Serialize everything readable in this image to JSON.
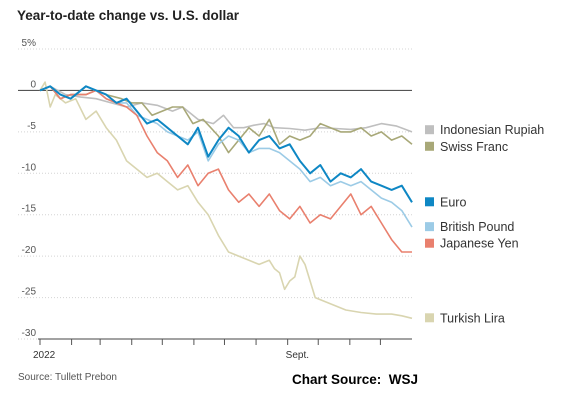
{
  "chart_data": {
    "type": "line",
    "title": "Year-to-date change vs. U.S. dollar",
    "source": "Source: Tullett Prebon",
    "credit": "Chart Source:  WSJ",
    "ylim": [
      -30,
      5
    ],
    "yticks": [
      5,
      0,
      -5,
      -10,
      -15,
      -20,
      -25,
      -30
    ],
    "ytick_labels": [
      "5%",
      "0",
      "-5",
      "-10",
      "-15",
      "-20",
      "-25",
      "-30"
    ],
    "x_start_label": "2022",
    "x_end_label": "Sept.",
    "grid": true,
    "legend": "right",
    "series": [
      {
        "name": "Indonesian Rupiah",
        "color": "#bfbfbf",
        "points": [
          [
            0,
            0
          ],
          [
            10,
            0.5
          ],
          [
            25,
            -0.5
          ],
          [
            40,
            -0.8
          ],
          [
            55,
            -1.0
          ],
          [
            70,
            -1.5
          ],
          [
            85,
            -2.0
          ],
          [
            100,
            -1.5
          ],
          [
            115,
            -1.8
          ],
          [
            130,
            -2.5
          ],
          [
            140,
            -2.0
          ],
          [
            155,
            -3.5
          ],
          [
            170,
            -4.0
          ],
          [
            180,
            -3.0
          ],
          [
            190,
            -4.5
          ],
          [
            200,
            -4.5
          ],
          [
            210,
            -4.2
          ],
          [
            220,
            -4.0
          ],
          [
            230,
            -4.5
          ],
          [
            245,
            -4.6
          ],
          [
            260,
            -4.8
          ],
          [
            275,
            -4.5
          ],
          [
            290,
            -4.6
          ],
          [
            305,
            -4.7
          ],
          [
            320,
            -4.5
          ],
          [
            335,
            -4.0
          ],
          [
            350,
            -4.3
          ],
          [
            365,
            -5.0
          ]
        ]
      },
      {
        "name": "Swiss Franc",
        "color": "#a8a878",
        "points": [
          [
            0,
            0
          ],
          [
            10,
            0.5
          ],
          [
            20,
            -1.0
          ],
          [
            30,
            -0.5
          ],
          [
            45,
            -0.5
          ],
          [
            55,
            0
          ],
          [
            65,
            -0.5
          ],
          [
            80,
            -1.0
          ],
          [
            90,
            -1.5
          ],
          [
            100,
            -1.5
          ],
          [
            110,
            -3.0
          ],
          [
            120,
            -2.5
          ],
          [
            130,
            -2.0
          ],
          [
            140,
            -2.0
          ],
          [
            150,
            -4.0
          ],
          [
            160,
            -3.5
          ],
          [
            175,
            -5.5
          ],
          [
            185,
            -7.5
          ],
          [
            195,
            -6.0
          ],
          [
            205,
            -4.5
          ],
          [
            215,
            -5.5
          ],
          [
            225,
            -3.5
          ],
          [
            235,
            -6.5
          ],
          [
            245,
            -5.5
          ],
          [
            255,
            -6.0
          ],
          [
            265,
            -5.5
          ],
          [
            275,
            -4.0
          ],
          [
            285,
            -4.5
          ],
          [
            295,
            -5.0
          ],
          [
            305,
            -5.0
          ],
          [
            315,
            -4.5
          ],
          [
            325,
            -5.5
          ],
          [
            335,
            -5.0
          ],
          [
            345,
            -6.0
          ],
          [
            355,
            -5.5
          ],
          [
            365,
            -6.5
          ]
        ]
      },
      {
        "name": "Euro",
        "color": "#0e87c4",
        "points": [
          [
            0,
            0
          ],
          [
            10,
            0.5
          ],
          [
            20,
            -0.5
          ],
          [
            30,
            -1.0
          ],
          [
            45,
            0.5
          ],
          [
            55,
            0
          ],
          [
            65,
            -0.5
          ],
          [
            75,
            -1.5
          ],
          [
            85,
            -1.0
          ],
          [
            95,
            -2.5
          ],
          [
            105,
            -4.0
          ],
          [
            115,
            -3.5
          ],
          [
            125,
            -4.5
          ],
          [
            135,
            -5.5
          ],
          [
            145,
            -6.5
          ],
          [
            155,
            -4.5
          ],
          [
            165,
            -8.0
          ],
          [
            175,
            -6.0
          ],
          [
            185,
            -4.5
          ],
          [
            195,
            -5.5
          ],
          [
            205,
            -7.5
          ],
          [
            215,
            -6.0
          ],
          [
            225,
            -5.5
          ],
          [
            235,
            -7.0
          ],
          [
            245,
            -6.5
          ],
          [
            255,
            -8.5
          ],
          [
            265,
            -10.0
          ],
          [
            275,
            -9.0
          ],
          [
            285,
            -11.0
          ],
          [
            295,
            -10.0
          ],
          [
            305,
            -10.5
          ],
          [
            315,
            -9.5
          ],
          [
            325,
            -11.0
          ],
          [
            335,
            -11.5
          ],
          [
            345,
            -12.0
          ],
          [
            355,
            -11.5
          ],
          [
            365,
            -13.5
          ]
        ]
      },
      {
        "name": "British Pound",
        "color": "#9ccbe6",
        "points": [
          [
            0,
            0
          ],
          [
            10,
            0.5
          ],
          [
            20,
            -0.5
          ],
          [
            30,
            -1.0
          ],
          [
            45,
            0.5
          ],
          [
            55,
            0
          ],
          [
            65,
            -1.0
          ],
          [
            75,
            -1.5
          ],
          [
            85,
            -1.5
          ],
          [
            95,
            -3.0
          ],
          [
            105,
            -3.5
          ],
          [
            115,
            -4.0
          ],
          [
            125,
            -5.0
          ],
          [
            135,
            -5.5
          ],
          [
            145,
            -6.0
          ],
          [
            155,
            -5.0
          ],
          [
            165,
            -8.5
          ],
          [
            175,
            -6.5
          ],
          [
            185,
            -5.5
          ],
          [
            195,
            -6.0
          ],
          [
            205,
            -7.5
          ],
          [
            215,
            -7.0
          ],
          [
            225,
            -7.0
          ],
          [
            235,
            -7.5
          ],
          [
            245,
            -8.5
          ],
          [
            255,
            -9.5
          ],
          [
            265,
            -11.0
          ],
          [
            275,
            -10.5
          ],
          [
            285,
            -11.5
          ],
          [
            295,
            -11.0
          ],
          [
            305,
            -11.5
          ],
          [
            315,
            -11.0
          ],
          [
            325,
            -12.0
          ],
          [
            335,
            -13.0
          ],
          [
            345,
            -13.5
          ],
          [
            355,
            -14.5
          ],
          [
            365,
            -16.5
          ]
        ]
      },
      {
        "name": "Japanese Yen",
        "color": "#e9806e",
        "points": [
          [
            0,
            0
          ],
          [
            10,
            0.5
          ],
          [
            20,
            -1.0
          ],
          [
            30,
            -0.5
          ],
          [
            45,
            -0.5
          ],
          [
            55,
            0
          ],
          [
            65,
            -1.0
          ],
          [
            75,
            -1.5
          ],
          [
            85,
            -2.0
          ],
          [
            95,
            -3.0
          ],
          [
            105,
            -5.5
          ],
          [
            115,
            -7.5
          ],
          [
            125,
            -8.5
          ],
          [
            135,
            -10.5
          ],
          [
            145,
            -9.0
          ],
          [
            155,
            -11.5
          ],
          [
            165,
            -10.0
          ],
          [
            175,
            -9.5
          ],
          [
            185,
            -12.0
          ],
          [
            195,
            -13.5
          ],
          [
            205,
            -12.5
          ],
          [
            215,
            -14.0
          ],
          [
            225,
            -12.5
          ],
          [
            235,
            -14.5
          ],
          [
            245,
            -15.5
          ],
          [
            255,
            -14.0
          ],
          [
            265,
            -16.0
          ],
          [
            275,
            -15.0
          ],
          [
            285,
            -15.5
          ],
          [
            295,
            -14.0
          ],
          [
            305,
            -12.5
          ],
          [
            315,
            -15.0
          ],
          [
            325,
            -14.0
          ],
          [
            335,
            -16.0
          ],
          [
            345,
            -18.0
          ],
          [
            355,
            -19.5
          ],
          [
            365,
            -19.5
          ]
        ]
      },
      {
        "name": "Turkish Lira",
        "color": "#d9d5b0",
        "points": [
          [
            0,
            0
          ],
          [
            5,
            1.0
          ],
          [
            10,
            -2.0
          ],
          [
            15,
            -0.5
          ],
          [
            25,
            -1.5
          ],
          [
            35,
            -1.0
          ],
          [
            45,
            -3.5
          ],
          [
            55,
            -2.5
          ],
          [
            65,
            -4.5
          ],
          [
            75,
            -6.0
          ],
          [
            85,
            -8.5
          ],
          [
            95,
            -9.5
          ],
          [
            105,
            -10.5
          ],
          [
            115,
            -10.0
          ],
          [
            125,
            -11.0
          ],
          [
            135,
            -12.0
          ],
          [
            145,
            -11.5
          ],
          [
            155,
            -13.5
          ],
          [
            165,
            -15.0
          ],
          [
            175,
            -17.5
          ],
          [
            185,
            -19.5
          ],
          [
            195,
            -20.0
          ],
          [
            205,
            -20.5
          ],
          [
            215,
            -21.0
          ],
          [
            225,
            -20.5
          ],
          [
            230,
            -21.5
          ],
          [
            235,
            -22.0
          ],
          [
            240,
            -24.0
          ],
          [
            245,
            -23.0
          ],
          [
            250,
            -22.5
          ],
          [
            255,
            -20.0
          ],
          [
            260,
            -21.0
          ],
          [
            270,
            -25.0
          ],
          [
            280,
            -25.5
          ],
          [
            290,
            -26.0
          ],
          [
            300,
            -26.5
          ],
          [
            315,
            -26.8
          ],
          [
            330,
            -27.0
          ],
          [
            345,
            -27.0
          ],
          [
            355,
            -27.2
          ],
          [
            365,
            -27.5
          ]
        ]
      }
    ],
    "legend_labels": [
      {
        "series": 0,
        "y": -4.8
      },
      {
        "series": 1,
        "y": -6.8
      },
      {
        "series": 2,
        "y": -13.5
      },
      {
        "series": 3,
        "y": -16.5
      },
      {
        "series": 4,
        "y": -18.5
      },
      {
        "series": 5,
        "y": -27.5
      }
    ]
  }
}
